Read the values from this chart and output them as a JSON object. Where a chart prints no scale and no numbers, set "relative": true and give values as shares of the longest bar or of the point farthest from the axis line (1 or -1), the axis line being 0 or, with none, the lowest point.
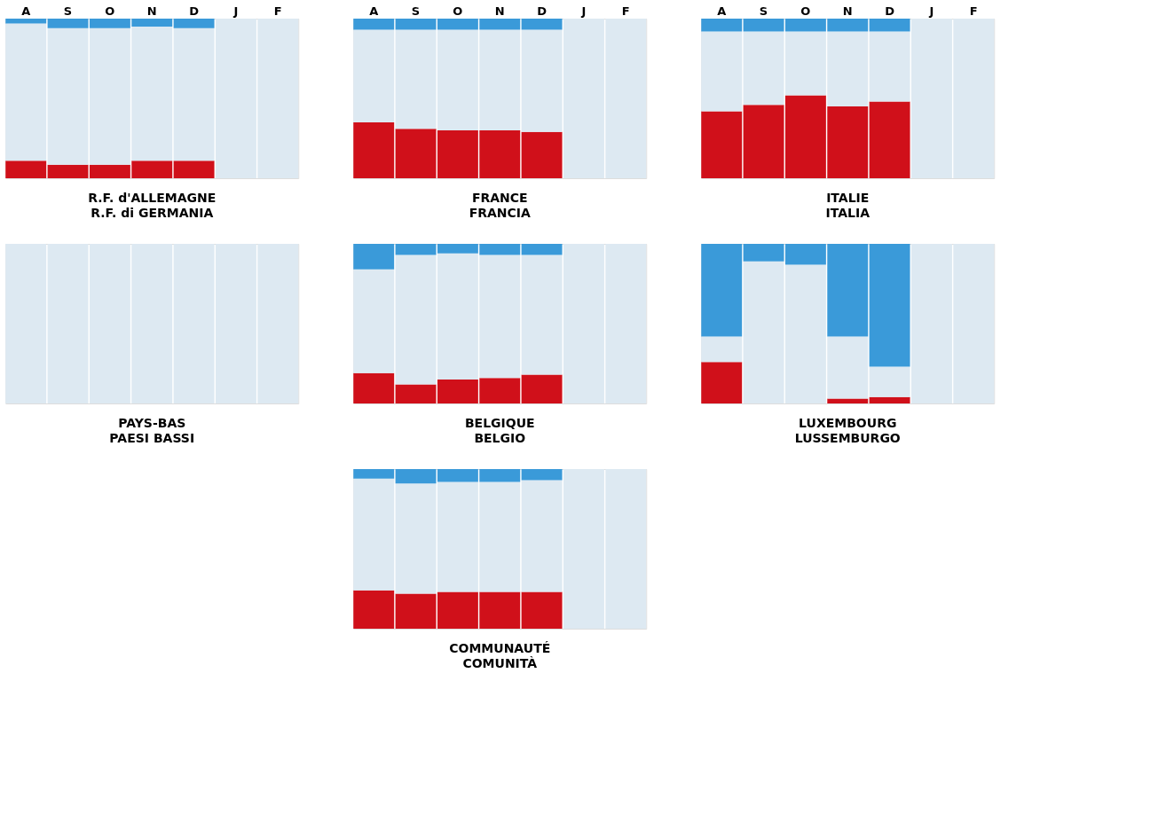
{
  "chart_data": [
    {
      "type": "bar",
      "stacked": true,
      "relative": true,
      "title": "R.F. d'ALLEMAGNE",
      "subtitle": "R.F. di GERMANIA",
      "categories": [
        "A",
        "S",
        "O",
        "N",
        "D",
        "J",
        "F"
      ],
      "series": [
        {
          "color": "#d0101a",
          "values": [
            0.11,
            0.085,
            0.085,
            0.11,
            0.11,
            null,
            null
          ]
        },
        {
          "color": "#dde9f2",
          "values": [
            0.86,
            0.855,
            0.855,
            0.84,
            0.83,
            1,
            1
          ]
        },
        {
          "color": "#3a9ad9",
          "values": [
            0.03,
            0.06,
            0.06,
            0.05,
            0.06,
            null,
            null
          ]
        }
      ]
    },
    {
      "type": "bar",
      "stacked": true,
      "relative": true,
      "title": "FRANCE",
      "subtitle": "FRANCIA",
      "categories": [
        "A",
        "S",
        "O",
        "N",
        "D",
        "J",
        "F"
      ],
      "series": [
        {
          "color": "#d0101a",
          "values": [
            0.35,
            0.31,
            0.3,
            0.3,
            0.29,
            null,
            null
          ]
        },
        {
          "color": "#dde9f2",
          "values": [
            0.58,
            0.62,
            0.63,
            0.63,
            0.64,
            1,
            1
          ]
        },
        {
          "color": "#3a9ad9",
          "values": [
            0.07,
            0.07,
            0.07,
            0.07,
            0.07,
            null,
            null
          ]
        }
      ]
    },
    {
      "type": "bar",
      "stacked": true,
      "relative": true,
      "title": "ITALIE",
      "subtitle": "ITALIA",
      "categories": [
        "A",
        "S",
        "O",
        "N",
        "D",
        "J",
        "F"
      ],
      "series": [
        {
          "color": "#d0101a",
          "values": [
            0.42,
            0.46,
            0.52,
            0.45,
            0.48,
            null,
            null
          ]
        },
        {
          "color": "#dde9f2",
          "values": [
            0.5,
            0.46,
            0.4,
            0.47,
            0.44,
            1,
            1
          ]
        },
        {
          "color": "#3a9ad9",
          "values": [
            0.08,
            0.08,
            0.08,
            0.08,
            0.08,
            null,
            null
          ]
        }
      ]
    },
    {
      "type": "bar",
      "stacked": true,
      "relative": true,
      "title": "PAYS-BAS",
      "subtitle": "PAESI BASSI",
      "categories": [
        null,
        null,
        null,
        null,
        null,
        null,
        null
      ],
      "series": [
        {
          "color": "#d0101a",
          "values": [
            0,
            0,
            0,
            0,
            0,
            null,
            null
          ]
        },
        {
          "color": "#dde9f2",
          "values": [
            1,
            1,
            1,
            1,
            1,
            1,
            1
          ]
        },
        {
          "color": "#3a9ad9",
          "values": [
            0,
            0,
            0,
            0,
            0,
            null,
            null
          ]
        }
      ]
    },
    {
      "type": "bar",
      "stacked": true,
      "relative": true,
      "title": "BELGIQUE",
      "subtitle": "BELGIO",
      "categories": [
        null,
        null,
        null,
        null,
        null,
        null,
        null
      ],
      "series": [
        {
          "color": "#d0101a",
          "values": [
            0.19,
            0.12,
            0.15,
            0.16,
            0.18,
            null,
            null
          ]
        },
        {
          "color": "#dde9f2",
          "values": [
            0.65,
            0.81,
            0.79,
            0.77,
            0.75,
            1,
            1
          ]
        },
        {
          "color": "#3a9ad9",
          "values": [
            0.16,
            0.07,
            0.06,
            0.07,
            0.07,
            null,
            null
          ]
        }
      ]
    },
    {
      "type": "bar",
      "stacked": true,
      "relative": true,
      "title": "LUXEMBOURG",
      "subtitle": "LUSSEMBURGO",
      "categories": [
        null,
        null,
        null,
        null,
        null,
        null,
        null
      ],
      "series": [
        {
          "color": "#d0101a",
          "values": [
            0.26,
            0,
            0,
            0.03,
            0.04,
            null,
            null
          ]
        },
        {
          "color": "#dde9f2",
          "values": [
            0.16,
            0.89,
            0.87,
            0.39,
            0.19,
            1,
            1
          ]
        },
        {
          "color": "#3a9ad9",
          "values": [
            0.58,
            0.11,
            0.13,
            0.58,
            0.77,
            null,
            null
          ]
        }
      ]
    },
    {
      "type": "bar",
      "stacked": true,
      "relative": true,
      "title": "COMMUNAUTÉ",
      "subtitle": "COMUNITÀ",
      "categories": [
        null,
        null,
        null,
        null,
        null,
        null,
        null
      ],
      "series": [
        {
          "color": "#d0101a",
          "values": [
            0.24,
            0.22,
            0.23,
            0.23,
            0.23,
            null,
            null
          ]
        },
        {
          "color": "#dde9f2",
          "values": [
            0.7,
            0.69,
            0.69,
            0.69,
            0.7,
            1,
            1
          ]
        },
        {
          "color": "#3a9ad9",
          "values": [
            0.06,
            0.09,
            0.08,
            0.08,
            0.07,
            null,
            null
          ]
        }
      ]
    }
  ]
}
